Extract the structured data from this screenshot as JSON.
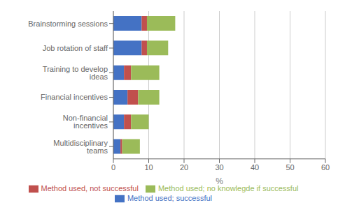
{
  "chart_data": {
    "type": "bar",
    "orientation": "horizontal",
    "stacked": true,
    "categories": [
      "Brainstorming sessions",
      "Job rotation of staff",
      "Training to develop ideas",
      "Financial incentives",
      "Non-financial incentives",
      "Multidisciplinary teams"
    ],
    "series": [
      {
        "name": "Method used; successful",
        "color": "#4472C4",
        "values": [
          8.0,
          8.0,
          3.0,
          4.0,
          3.0,
          2.0
        ]
      },
      {
        "name": "Method used, not successful",
        "color": "#C0504D",
        "values": [
          1.5,
          1.5,
          2.0,
          3.0,
          2.0,
          0.5
        ]
      },
      {
        "name": "Method used; no knowlegde if successful",
        "color": "#9BBB59",
        "values": [
          8.0,
          6.0,
          8.0,
          6.0,
          5.0,
          5.0
        ]
      }
    ],
    "xlabel": "%",
    "xlim": [
      0,
      60
    ],
    "xticks": [
      0,
      10,
      20,
      30,
      40,
      50,
      60
    ],
    "grid": true,
    "legend": "bottom"
  }
}
